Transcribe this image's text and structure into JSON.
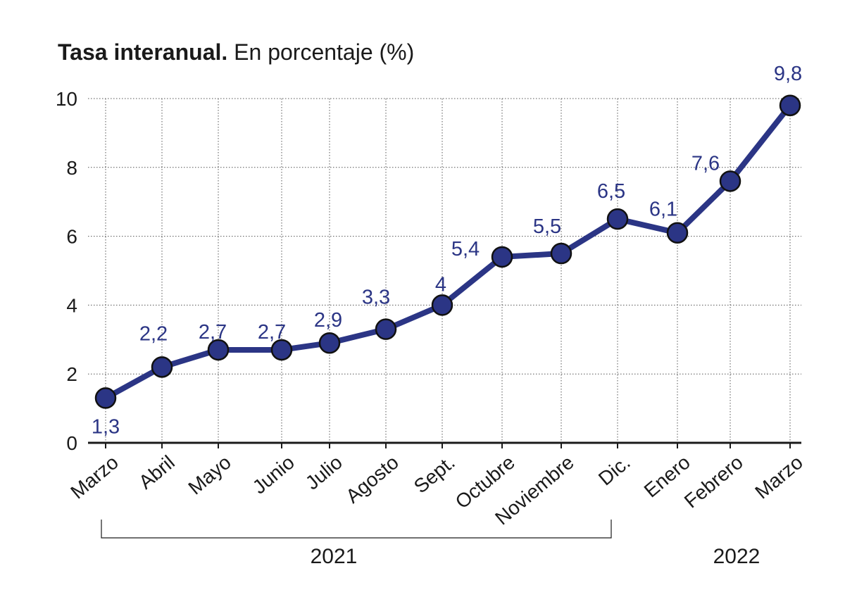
{
  "chart_data": {
    "type": "line",
    "title": "Tasa interanual.",
    "subtitle": "En porcentaje (%)",
    "categories": [
      "Marzo",
      "Abril",
      "Mayo",
      "Junio",
      "Julio",
      "Agosto",
      "Sept.",
      "Octubre",
      "Noviembre",
      "Dic.",
      "Enero",
      "Febrero",
      "Marzo"
    ],
    "series": [
      {
        "values": [
          1.3,
          2.2,
          2.7,
          2.7,
          2.9,
          3.3,
          4.0,
          5.4,
          5.5,
          6.5,
          6.1,
          7.6,
          9.8
        ],
        "labels": [
          "1,3",
          "2,2",
          "2,7",
          "2,7",
          "2,9",
          "3,3",
          "4",
          "5,4",
          "5,5",
          "6,5",
          "6,1",
          "7,6",
          "9,8"
        ]
      }
    ],
    "ylim": [
      0,
      10
    ],
    "yticks": [
      "0",
      "2",
      "4",
      "6",
      "8",
      "10"
    ],
    "year_groups": [
      {
        "label": "2021",
        "first": 0,
        "last": 9,
        "bracket": true
      },
      {
        "label": "2022",
        "first": 10,
        "last": 12,
        "bracket": false
      }
    ],
    "grid": true,
    "colors": {
      "line": "#2b3585",
      "marker": "#2b3585",
      "label": "#2b3585",
      "grid": "#555555"
    }
  }
}
